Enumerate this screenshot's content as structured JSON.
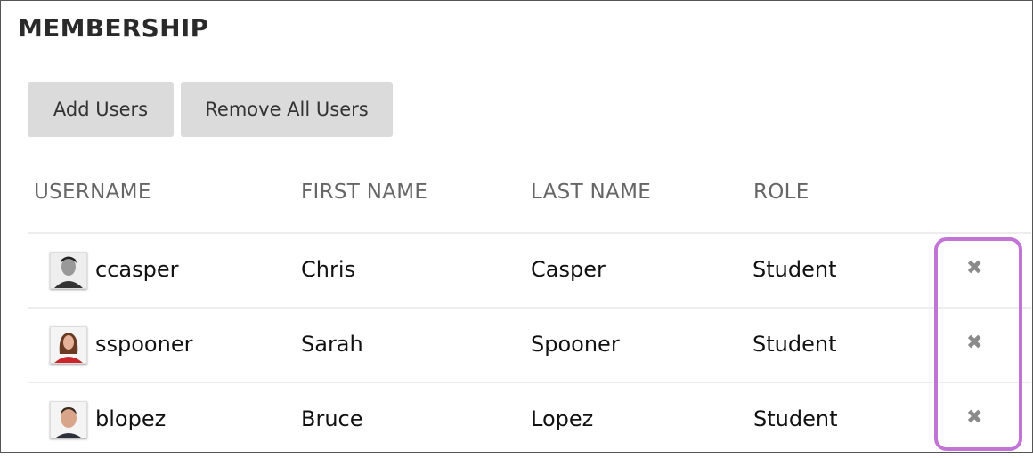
{
  "title": "MEMBERSHIP",
  "buttons": {
    "add_users": "Add Users",
    "remove_all_users": "Remove All Users"
  },
  "columns": [
    "USERNAME",
    "FIRST NAME",
    "LAST NAME",
    "ROLE"
  ],
  "rows": [
    {
      "username": "ccasper",
      "first_name": "Chris",
      "last_name": "Casper",
      "role": "Student",
      "delete_icon": "✖"
    },
    {
      "username": "sspooner",
      "first_name": "Sarah",
      "last_name": "Spooner",
      "role": "Student",
      "delete_icon": "✖"
    },
    {
      "username": "blopez",
      "first_name": "Bruce",
      "last_name": "Lopez",
      "role": "Student",
      "delete_icon": "✖"
    }
  ],
  "colors": {
    "highlight": "#c173d6",
    "button_bg": "#dcdbdc",
    "delete_icon": "#8a8a8a"
  }
}
